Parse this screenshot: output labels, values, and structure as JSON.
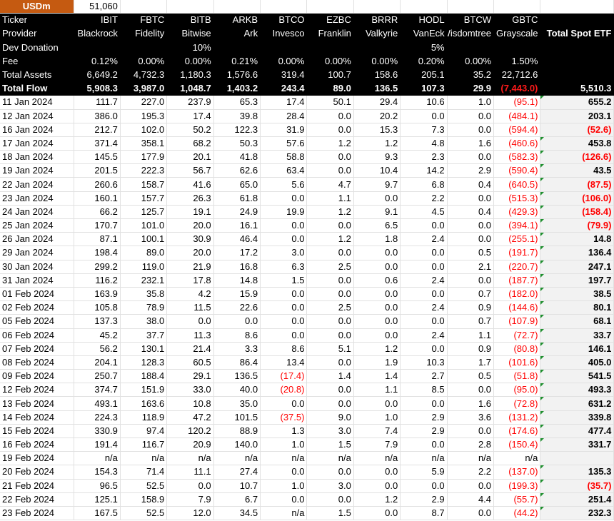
{
  "header": {
    "unit_label": "USDm",
    "unit_value": "51,060"
  },
  "row_labels": {
    "ticker": "Ticker",
    "provider": "Provider",
    "dev_donation": "Dev Donation",
    "fee": "Fee",
    "total_assets": "Total Assets",
    "total_flow": "Total Flow"
  },
  "total_column": {
    "label": "Total Spot ETF",
    "total_flow": "5,510.3"
  },
  "colors": {
    "unit_header": "#c55a11",
    "negative": "#ff0000",
    "header_bg": "#000000",
    "total_bg": "#f2f2f2",
    "comment_marker": "#1e8f2e"
  },
  "funds": [
    {
      "ticker": "IBIT",
      "provider": "Blackrock",
      "dev_donation": "",
      "fee": "0.12%",
      "total_assets": "6,649.2",
      "total_flow": "5,908.3"
    },
    {
      "ticker": "FBTC",
      "provider": "Fidelity",
      "dev_donation": "",
      "fee": "0.00%",
      "total_assets": "4,732.3",
      "total_flow": "3,987.0"
    },
    {
      "ticker": "BITB",
      "provider": "Bitwise",
      "dev_donation": "10%",
      "fee": "0.00%",
      "total_assets": "1,180.3",
      "total_flow": "1,048.7"
    },
    {
      "ticker": "ARKB",
      "provider": "Ark",
      "dev_donation": "",
      "fee": "0.21%",
      "total_assets": "1,576.6",
      "total_flow": "1,403.2"
    },
    {
      "ticker": "BTCO",
      "provider": "Invesco",
      "dev_donation": "",
      "fee": "0.00%",
      "total_assets": "319.4",
      "total_flow": "243.4"
    },
    {
      "ticker": "EZBC",
      "provider": "Franklin",
      "dev_donation": "",
      "fee": "0.00%",
      "total_assets": "100.7",
      "total_flow": "89.0"
    },
    {
      "ticker": "BRRR",
      "provider": "Valkyrie",
      "dev_donation": "",
      "fee": "0.00%",
      "total_assets": "158.6",
      "total_flow": "136.5"
    },
    {
      "ticker": "HODL",
      "provider": "VanEck",
      "dev_donation": "5%",
      "fee": "0.20%",
      "total_assets": "205.1",
      "total_flow": "107.3"
    },
    {
      "ticker": "BTCW",
      "provider": "Wisdomtree",
      "dev_donation": "",
      "fee": "0.00%",
      "total_assets": "35.2",
      "total_flow": "29.9"
    },
    {
      "ticker": "GBTC",
      "provider": "Grayscale",
      "dev_donation": "",
      "fee": "1.50%",
      "total_assets": "22,712.6",
      "total_flow": "(7,443.0)"
    }
  ],
  "rows": [
    {
      "date": "11 Jan 2024",
      "values": [
        "111.7",
        "227.0",
        "237.9",
        "65.3",
        "17.4",
        "50.1",
        "29.4",
        "10.6",
        "1.0",
        "(95.1)"
      ],
      "total": "655.2"
    },
    {
      "date": "12 Jan 2024",
      "values": [
        "386.0",
        "195.3",
        "17.4",
        "39.8",
        "28.4",
        "0.0",
        "20.2",
        "0.0",
        "0.0",
        "(484.1)"
      ],
      "total": "203.1"
    },
    {
      "date": "16 Jan 2024",
      "values": [
        "212.7",
        "102.0",
        "50.2",
        "122.3",
        "31.9",
        "0.0",
        "15.3",
        "7.3",
        "0.0",
        "(594.4)"
      ],
      "total": "(52.6)"
    },
    {
      "date": "17 Jan 2024",
      "values": [
        "371.4",
        "358.1",
        "68.2",
        "50.3",
        "57.6",
        "1.2",
        "1.2",
        "4.8",
        "1.6",
        "(460.6)"
      ],
      "total": "453.8"
    },
    {
      "date": "18 Jan 2024",
      "values": [
        "145.5",
        "177.9",
        "20.1",
        "41.8",
        "58.8",
        "0.0",
        "9.3",
        "2.3",
        "0.0",
        "(582.3)"
      ],
      "total": "(126.6)"
    },
    {
      "date": "19 Jan 2024",
      "values": [
        "201.5",
        "222.3",
        "56.7",
        "62.6",
        "63.4",
        "0.0",
        "10.4",
        "14.2",
        "2.9",
        "(590.4)"
      ],
      "total": "43.5"
    },
    {
      "date": "22 Jan 2024",
      "values": [
        "260.6",
        "158.7",
        "41.6",
        "65.0",
        "5.6",
        "4.7",
        "9.7",
        "6.8",
        "0.4",
        "(640.5)"
      ],
      "total": "(87.5)"
    },
    {
      "date": "23 Jan 2024",
      "values": [
        "160.1",
        "157.7",
        "26.3",
        "61.8",
        "0.0",
        "1.1",
        "0.0",
        "2.2",
        "0.0",
        "(515.3)"
      ],
      "total": "(106.0)"
    },
    {
      "date": "24 Jan 2024",
      "values": [
        "66.2",
        "125.7",
        "19.1",
        "24.9",
        "19.9",
        "1.2",
        "9.1",
        "4.5",
        "0.4",
        "(429.3)"
      ],
      "total": "(158.4)"
    },
    {
      "date": "25 Jan 2024",
      "values": [
        "170.7",
        "101.0",
        "20.0",
        "16.1",
        "0.0",
        "0.0",
        "6.5",
        "0.0",
        "0.0",
        "(394.1)"
      ],
      "total": "(79.9)"
    },
    {
      "date": "26 Jan 2024",
      "values": [
        "87.1",
        "100.1",
        "30.9",
        "46.4",
        "0.0",
        "1.2",
        "1.8",
        "2.4",
        "0.0",
        "(255.1)"
      ],
      "total": "14.8"
    },
    {
      "date": "29 Jan 2024",
      "values": [
        "198.4",
        "89.0",
        "20.0",
        "17.2",
        "3.0",
        "0.0",
        "0.0",
        "0.0",
        "0.5",
        "(191.7)"
      ],
      "total": "136.4"
    },
    {
      "date": "30 Jan 2024",
      "values": [
        "299.2",
        "119.0",
        "21.9",
        "16.8",
        "6.3",
        "2.5",
        "0.0",
        "0.0",
        "2.1",
        "(220.7)"
      ],
      "total": "247.1"
    },
    {
      "date": "31 Jan 2024",
      "values": [
        "116.2",
        "232.1",
        "17.8",
        "14.8",
        "1.5",
        "0.0",
        "0.6",
        "2.4",
        "0.0",
        "(187.7)"
      ],
      "total": "197.7"
    },
    {
      "date": "01 Feb 2024",
      "values": [
        "163.9",
        "35.8",
        "4.2",
        "15.9",
        "0.0",
        "0.0",
        "0.0",
        "0.0",
        "0.7",
        "(182.0)"
      ],
      "total": "38.5"
    },
    {
      "date": "02 Feb 2024",
      "values": [
        "105.8",
        "78.9",
        "11.5",
        "22.6",
        "0.0",
        "2.5",
        "0.0",
        "2.4",
        "0.9",
        "(144.6)"
      ],
      "total": "80.1"
    },
    {
      "date": "05 Feb 2024",
      "values": [
        "137.3",
        "38.0",
        "0.0",
        "0.0",
        "0.0",
        "0.0",
        "0.0",
        "0.0",
        "0.7",
        "(107.9)"
      ],
      "total": "68.1"
    },
    {
      "date": "06 Feb 2024",
      "values": [
        "45.2",
        "37.7",
        "11.3",
        "8.6",
        "0.0",
        "0.0",
        "0.0",
        "2.4",
        "1.1",
        "(72.7)"
      ],
      "total": "33.7"
    },
    {
      "date": "07 Feb 2024",
      "values": [
        "56.2",
        "130.1",
        "21.4",
        "3.3",
        "8.6",
        "5.1",
        "1.2",
        "0.0",
        "0.9",
        "(80.8)"
      ],
      "total": "146.1"
    },
    {
      "date": "08 Feb 2024",
      "values": [
        "204.1",
        "128.3",
        "60.5",
        "86.4",
        "13.4",
        "0.0",
        "1.9",
        "10.3",
        "1.7",
        "(101.6)"
      ],
      "total": "405.0"
    },
    {
      "date": "09 Feb 2024",
      "values": [
        "250.7",
        "188.4",
        "29.1",
        "136.5",
        "(17.4)",
        "1.4",
        "1.4",
        "2.7",
        "0.5",
        "(51.8)"
      ],
      "total": "541.5"
    },
    {
      "date": "12 Feb 2024",
      "values": [
        "374.7",
        "151.9",
        "33.0",
        "40.0",
        "(20.8)",
        "0.0",
        "1.1",
        "8.5",
        "0.0",
        "(95.0)"
      ],
      "total": "493.3"
    },
    {
      "date": "13 Feb 2024",
      "values": [
        "493.1",
        "163.6",
        "10.8",
        "35.0",
        "0.0",
        "0.0",
        "0.0",
        "0.0",
        "1.6",
        "(72.8)"
      ],
      "total": "631.2"
    },
    {
      "date": "14 Feb 2024",
      "values": [
        "224.3",
        "118.9",
        "47.2",
        "101.5",
        "(37.5)",
        "9.0",
        "1.0",
        "2.9",
        "3.6",
        "(131.2)"
      ],
      "total": "339.8"
    },
    {
      "date": "15 Feb 2024",
      "values": [
        "330.9",
        "97.4",
        "120.2",
        "88.9",
        "1.3",
        "3.0",
        "7.4",
        "2.9",
        "0.0",
        "(174.6)"
      ],
      "total": "477.4"
    },
    {
      "date": "16 Feb 2024",
      "values": [
        "191.4",
        "116.7",
        "20.9",
        "140.0",
        "1.0",
        "1.5",
        "7.9",
        "0.0",
        "2.8",
        "(150.4)"
      ],
      "total": "331.7"
    },
    {
      "date": "19 Feb 2024",
      "values": [
        "n/a",
        "n/a",
        "n/a",
        "n/a",
        "n/a",
        "n/a",
        "n/a",
        "n/a",
        "n/a",
        "n/a"
      ],
      "total": ""
    },
    {
      "date": "20 Feb 2024",
      "values": [
        "154.3",
        "71.4",
        "11.1",
        "27.4",
        "0.0",
        "0.0",
        "0.0",
        "5.9",
        "2.2",
        "(137.0)"
      ],
      "total": "135.3"
    },
    {
      "date": "21 Feb 2024",
      "values": [
        "96.5",
        "52.5",
        "0.0",
        "10.7",
        "1.0",
        "3.0",
        "0.0",
        "0.0",
        "0.0",
        "(199.3)"
      ],
      "total": "(35.7)"
    },
    {
      "date": "22 Feb 2024",
      "values": [
        "125.1",
        "158.9",
        "7.9",
        "6.7",
        "0.0",
        "0.0",
        "1.2",
        "2.9",
        "4.4",
        "(55.7)"
      ],
      "total": "251.4"
    },
    {
      "date": "23 Feb 2024",
      "values": [
        "167.5",
        "52.5",
        "12.0",
        "34.5",
        "n/a",
        "1.5",
        "0.0",
        "8.7",
        "0.0",
        "(44.2)"
      ],
      "total": "232.3"
    }
  ]
}
